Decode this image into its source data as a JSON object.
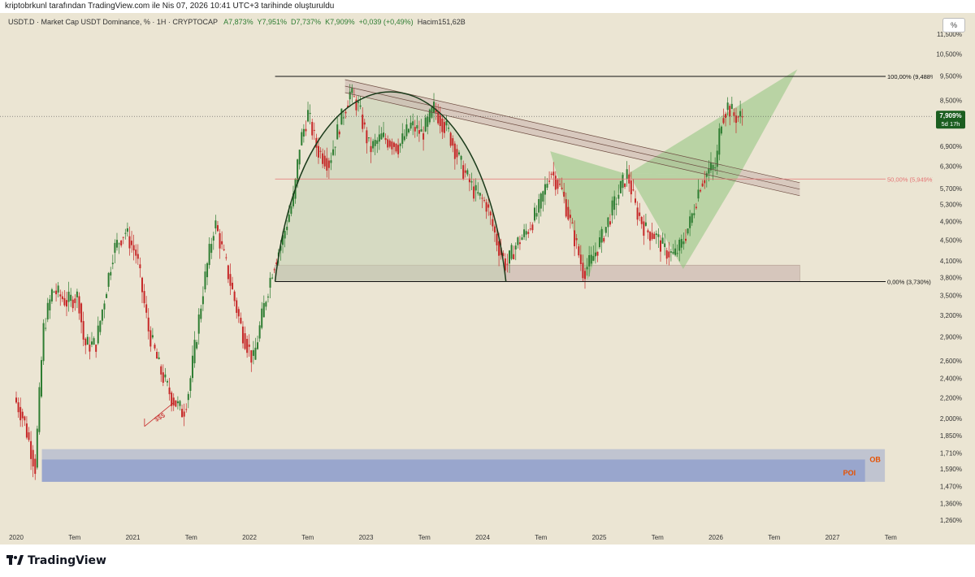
{
  "header": {
    "credit": "kriptobrkunl tarafından TradingView.com ile Nis 07, 2026 10:41 UTC+3 tarihinde oluşturuldu"
  },
  "legend": {
    "symbol": "USDT.D · Market Cap USDT Dominance, % · 1H · CRYPTOCAP",
    "open": "A7,873%",
    "high": "Y7,951%",
    "low": "D7,737%",
    "close": "K7,909%",
    "change": "+0,039 (+0,49%)",
    "volume": "Hacim151,62B"
  },
  "toolbar": {
    "percent_label": "%"
  },
  "footer": {
    "brand": "TradingView"
  },
  "chart_data": {
    "type": "candlestick",
    "scale": "log",
    "ylim": [
      1.2,
      11.5
    ],
    "y_ticks": [
      "11,500%",
      "10,500%",
      "9,500%",
      "8,500%",
      "7,700%",
      "6,900%",
      "6,300%",
      "5,700%",
      "5,300%",
      "4,900%",
      "4,500%",
      "4,100%",
      "3,800%",
      "3,500%",
      "3,200%",
      "2,900%",
      "2,600%",
      "2,400%",
      "2,200%",
      "2,000%",
      "1,850%",
      "1,710%",
      "1,590%",
      "1,470%",
      "1,360%",
      "1,260%"
    ],
    "x_ticks": [
      "2020",
      "Tem",
      "2021",
      "Tem",
      "2022",
      "Tem",
      "2023",
      "Tem",
      "2024",
      "Tem",
      "2025",
      "Tem",
      "2026",
      "Tem",
      "2027",
      "Tem"
    ],
    "price_path": [
      [
        2020.0,
        2.2
      ],
      [
        2020.08,
        2.0
      ],
      [
        2020.18,
        1.6
      ],
      [
        2020.25,
        3.0
      ],
      [
        2020.33,
        3.6
      ],
      [
        2020.45,
        3.4
      ],
      [
        2020.55,
        3.5
      ],
      [
        2020.6,
        2.8
      ],
      [
        2020.7,
        2.8
      ],
      [
        2020.85,
        4.3
      ],
      [
        2020.95,
        4.7
      ],
      [
        2021.05,
        4.2
      ],
      [
        2021.15,
        3.0
      ],
      [
        2021.25,
        2.5
      ],
      [
        2021.35,
        2.2
      ],
      [
        2021.45,
        2.05
      ],
      [
        2021.5,
        2.3
      ],
      [
        2021.62,
        3.6
      ],
      [
        2021.72,
        4.9
      ],
      [
        2021.82,
        4.0
      ],
      [
        2021.95,
        3.0
      ],
      [
        2022.05,
        2.6
      ],
      [
        2022.15,
        3.4
      ],
      [
        2022.22,
        4.0
      ],
      [
        2022.3,
        4.5
      ],
      [
        2022.35,
        5.0
      ],
      [
        2022.4,
        5.5
      ],
      [
        2022.45,
        7.0
      ],
      [
        2022.52,
        8.0
      ],
      [
        2022.6,
        6.8
      ],
      [
        2022.7,
        6.4
      ],
      [
        2022.78,
        7.5
      ],
      [
        2022.88,
        8.8
      ],
      [
        2022.95,
        8.3
      ],
      [
        2023.05,
        6.8
      ],
      [
        2023.15,
        7.2
      ],
      [
        2023.3,
        6.9
      ],
      [
        2023.4,
        7.6
      ],
      [
        2023.5,
        7.3
      ],
      [
        2023.6,
        8.2
      ],
      [
        2023.72,
        7.4
      ],
      [
        2023.85,
        6.2
      ],
      [
        2023.95,
        5.6
      ],
      [
        2024.05,
        5.3
      ],
      [
        2024.15,
        4.4
      ],
      [
        2024.22,
        4.0
      ],
      [
        2024.3,
        4.4
      ],
      [
        2024.4,
        4.7
      ],
      [
        2024.5,
        5.2
      ],
      [
        2024.6,
        6.2
      ],
      [
        2024.7,
        5.6
      ],
      [
        2024.8,
        4.6
      ],
      [
        2024.88,
        3.9
      ],
      [
        2024.95,
        4.1
      ],
      [
        2025.05,
        4.6
      ],
      [
        2025.12,
        5.1
      ],
      [
        2025.2,
        5.7
      ],
      [
        2025.26,
        6.1
      ],
      [
        2025.33,
        5.2
      ],
      [
        2025.42,
        4.7
      ],
      [
        2025.5,
        4.6
      ],
      [
        2025.58,
        4.3
      ],
      [
        2025.66,
        4.2
      ],
      [
        2025.72,
        4.4
      ],
      [
        2025.8,
        4.9
      ],
      [
        2025.88,
        5.8
      ],
      [
        2025.96,
        6.2
      ],
      [
        2026.02,
        6.3
      ],
      [
        2026.06,
        7.8
      ],
      [
        2026.12,
        8.3
      ],
      [
        2026.18,
        7.9
      ],
      [
        2026.24,
        7.91
      ]
    ],
    "annotations": {
      "fib_high": "100,00% (9,488%)",
      "fib_mid": "50,00% (5,949%)",
      "fib_low": "0,00% (3,730%)",
      "sss": "$$$",
      "poi": "POI",
      "ob": "OB"
    },
    "levels": {
      "fib_high": 9.488,
      "fib_mid": 5.949,
      "fib_low": 3.73,
      "current": 7.909
    },
    "price_label": {
      "value": "7,909%",
      "countdown": "5d 17h"
    },
    "grid": false
  },
  "colors": {
    "background": "#ebe5d3",
    "up": "#2e7d32",
    "down": "#c62828",
    "price_tag": "#1b5e20",
    "fib_mid": "#e57373",
    "zone_fill": "#c9b3ad",
    "green_fill": "#8fc57d",
    "poi_fill": "#8c9ccc",
    "orange": "#e65100"
  }
}
